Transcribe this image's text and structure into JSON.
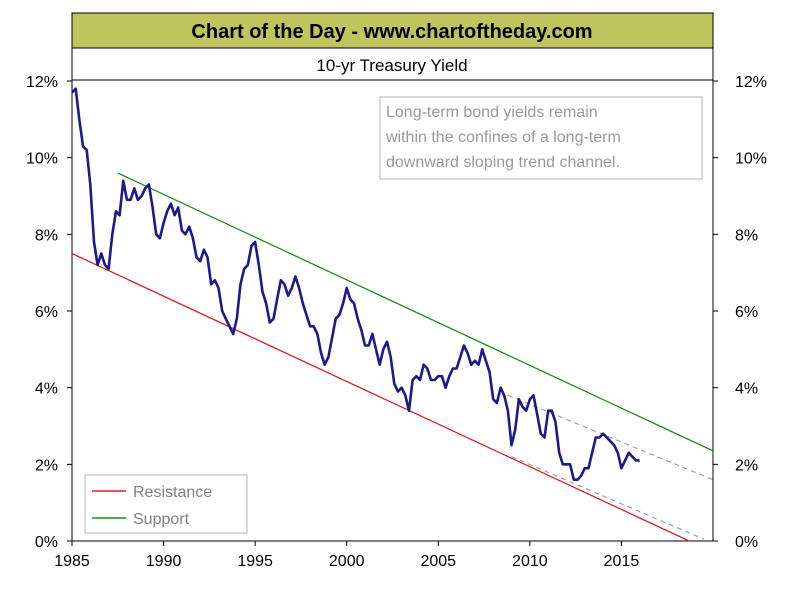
{
  "header": {
    "banner_title": "Chart of the Day - www.chartoftheday.com",
    "chart_title": "10-yr Treasury Yield",
    "annotation_lines": [
      "Long-term bond yields remain",
      "within the confines of a long-term",
      "downward sloping trend channel."
    ]
  },
  "colors": {
    "banner_bg": "#bfc45c",
    "yield_line": "#1a1a8c",
    "resistance": "#e02020",
    "support": "#1f8f1f",
    "channel_dashed": "#a0a0a0"
  },
  "legend": {
    "placement": "bottom-left",
    "items": [
      {
        "label": "Resistance",
        "color": "#e02020"
      },
      {
        "label": "Support",
        "color": "#1f8f1f"
      }
    ]
  },
  "chart_data": {
    "type": "line",
    "title": "10-yr Treasury Yield",
    "xlabel": "",
    "ylabel": "",
    "xlim": [
      1985,
      2020
    ],
    "ylim": [
      0,
      12
    ],
    "x_ticks": [
      1985,
      1990,
      1995,
      2000,
      2005,
      2010,
      2015
    ],
    "y_ticks": [
      0,
      2,
      4,
      6,
      8,
      10,
      12
    ],
    "y_tick_labels": [
      "0%",
      "2%",
      "4%",
      "6%",
      "8%",
      "10%",
      "12%"
    ],
    "grid": false,
    "series": [
      {
        "name": "10-yr Treasury Yield",
        "style": "solid",
        "points": [
          [
            1985.0,
            11.7
          ],
          [
            1985.2,
            11.8
          ],
          [
            1985.4,
            11.0
          ],
          [
            1985.6,
            10.3
          ],
          [
            1985.8,
            10.2
          ],
          [
            1986.0,
            9.3
          ],
          [
            1986.2,
            7.8
          ],
          [
            1986.4,
            7.2
          ],
          [
            1986.6,
            7.5
          ],
          [
            1986.8,
            7.2
          ],
          [
            1987.0,
            7.1
          ],
          [
            1987.2,
            8.0
          ],
          [
            1987.4,
            8.6
          ],
          [
            1987.6,
            8.5
          ],
          [
            1987.8,
            9.4
          ],
          [
            1988.0,
            8.9
          ],
          [
            1988.2,
            8.9
          ],
          [
            1988.4,
            9.2
          ],
          [
            1988.6,
            8.9
          ],
          [
            1988.8,
            9.0
          ],
          [
            1989.0,
            9.2
          ],
          [
            1989.2,
            9.3
          ],
          [
            1989.4,
            8.7
          ],
          [
            1989.6,
            8.0
          ],
          [
            1989.8,
            7.9
          ],
          [
            1990.0,
            8.3
          ],
          [
            1990.2,
            8.6
          ],
          [
            1990.4,
            8.8
          ],
          [
            1990.6,
            8.5
          ],
          [
            1990.8,
            8.7
          ],
          [
            1991.0,
            8.1
          ],
          [
            1991.2,
            8.0
          ],
          [
            1991.4,
            8.2
          ],
          [
            1991.6,
            7.9
          ],
          [
            1991.8,
            7.4
          ],
          [
            1992.0,
            7.3
          ],
          [
            1992.2,
            7.6
          ],
          [
            1992.4,
            7.4
          ],
          [
            1992.6,
            6.7
          ],
          [
            1992.8,
            6.8
          ],
          [
            1993.0,
            6.6
          ],
          [
            1993.2,
            6.0
          ],
          [
            1993.4,
            5.8
          ],
          [
            1993.6,
            5.6
          ],
          [
            1993.8,
            5.4
          ],
          [
            1994.0,
            5.8
          ],
          [
            1994.2,
            6.7
          ],
          [
            1994.4,
            7.1
          ],
          [
            1994.6,
            7.2
          ],
          [
            1994.8,
            7.7
          ],
          [
            1995.0,
            7.8
          ],
          [
            1995.2,
            7.2
          ],
          [
            1995.4,
            6.5
          ],
          [
            1995.6,
            6.2
          ],
          [
            1995.8,
            5.7
          ],
          [
            1996.0,
            5.8
          ],
          [
            1996.2,
            6.3
          ],
          [
            1996.4,
            6.8
          ],
          [
            1996.6,
            6.7
          ],
          [
            1996.8,
            6.4
          ],
          [
            1997.0,
            6.6
          ],
          [
            1997.2,
            6.9
          ],
          [
            1997.4,
            6.6
          ],
          [
            1997.6,
            6.2
          ],
          [
            1997.8,
            5.9
          ],
          [
            1998.0,
            5.6
          ],
          [
            1998.2,
            5.6
          ],
          [
            1998.4,
            5.4
          ],
          [
            1998.6,
            4.9
          ],
          [
            1998.8,
            4.6
          ],
          [
            1999.0,
            4.8
          ],
          [
            1999.2,
            5.3
          ],
          [
            1999.4,
            5.8
          ],
          [
            1999.6,
            5.9
          ],
          [
            1999.8,
            6.2
          ],
          [
            2000.0,
            6.6
          ],
          [
            2000.2,
            6.3
          ],
          [
            2000.4,
            6.2
          ],
          [
            2000.6,
            5.8
          ],
          [
            2000.8,
            5.5
          ],
          [
            2001.0,
            5.1
          ],
          [
            2001.2,
            5.1
          ],
          [
            2001.4,
            5.4
          ],
          [
            2001.6,
            5.0
          ],
          [
            2001.8,
            4.6
          ],
          [
            2002.0,
            5.0
          ],
          [
            2002.2,
            5.2
          ],
          [
            2002.4,
            4.8
          ],
          [
            2002.6,
            4.1
          ],
          [
            2002.8,
            3.9
          ],
          [
            2003.0,
            4.0
          ],
          [
            2003.2,
            3.8
          ],
          [
            2003.4,
            3.4
          ],
          [
            2003.6,
            4.2
          ],
          [
            2003.8,
            4.3
          ],
          [
            2004.0,
            4.2
          ],
          [
            2004.2,
            4.6
          ],
          [
            2004.4,
            4.5
          ],
          [
            2004.6,
            4.2
          ],
          [
            2004.8,
            4.2
          ],
          [
            2005.0,
            4.3
          ],
          [
            2005.2,
            4.3
          ],
          [
            2005.4,
            4.0
          ],
          [
            2005.6,
            4.3
          ],
          [
            2005.8,
            4.5
          ],
          [
            2006.0,
            4.5
          ],
          [
            2006.2,
            4.8
          ],
          [
            2006.4,
            5.1
          ],
          [
            2006.6,
            4.9
          ],
          [
            2006.8,
            4.6
          ],
          [
            2007.0,
            4.7
          ],
          [
            2007.2,
            4.6
          ],
          [
            2007.4,
            5.0
          ],
          [
            2007.6,
            4.7
          ],
          [
            2007.8,
            4.4
          ],
          [
            2008.0,
            3.7
          ],
          [
            2008.2,
            3.6
          ],
          [
            2008.4,
            4.0
          ],
          [
            2008.6,
            3.8
          ],
          [
            2008.8,
            3.4
          ],
          [
            2009.0,
            2.5
          ],
          [
            2009.2,
            2.9
          ],
          [
            2009.4,
            3.7
          ],
          [
            2009.6,
            3.5
          ],
          [
            2009.8,
            3.4
          ],
          [
            2010.0,
            3.7
          ],
          [
            2010.2,
            3.8
          ],
          [
            2010.4,
            3.3
          ],
          [
            2010.6,
            2.8
          ],
          [
            2010.8,
            2.7
          ],
          [
            2011.0,
            3.4
          ],
          [
            2011.2,
            3.4
          ],
          [
            2011.4,
            3.1
          ],
          [
            2011.6,
            2.3
          ],
          [
            2011.8,
            2.0
          ],
          [
            2012.0,
            2.0
          ],
          [
            2012.2,
            2.0
          ],
          [
            2012.4,
            1.6
          ],
          [
            2012.6,
            1.6
          ],
          [
            2012.8,
            1.7
          ],
          [
            2013.0,
            1.9
          ],
          [
            2013.2,
            1.9
          ],
          [
            2013.4,
            2.3
          ],
          [
            2013.6,
            2.7
          ],
          [
            2013.8,
            2.7
          ],
          [
            2014.0,
            2.8
          ],
          [
            2014.2,
            2.7
          ],
          [
            2014.4,
            2.6
          ],
          [
            2014.6,
            2.5
          ],
          [
            2014.8,
            2.3
          ],
          [
            2015.0,
            1.9
          ],
          [
            2015.2,
            2.1
          ],
          [
            2015.4,
            2.3
          ],
          [
            2015.6,
            2.2
          ],
          [
            2015.8,
            2.1
          ],
          [
            2016.0,
            2.1
          ]
        ]
      },
      {
        "name": "Resistance",
        "style": "solid",
        "points": [
          [
            1985.0,
            7.5
          ],
          [
            2018.7,
            0.0
          ]
        ]
      },
      {
        "name": "Support",
        "style": "solid",
        "points": [
          [
            1987.5,
            9.6
          ],
          [
            2020.0,
            2.35
          ]
        ]
      },
      {
        "name": "",
        "style": "dashed",
        "points": [
          [
            2008.8,
            3.8
          ],
          [
            2020.0,
            1.6
          ]
        ]
      },
      {
        "name": "",
        "style": "dashed",
        "points": [
          [
            2009.0,
            2.2
          ],
          [
            2019.5,
            0.05
          ]
        ]
      }
    ]
  }
}
